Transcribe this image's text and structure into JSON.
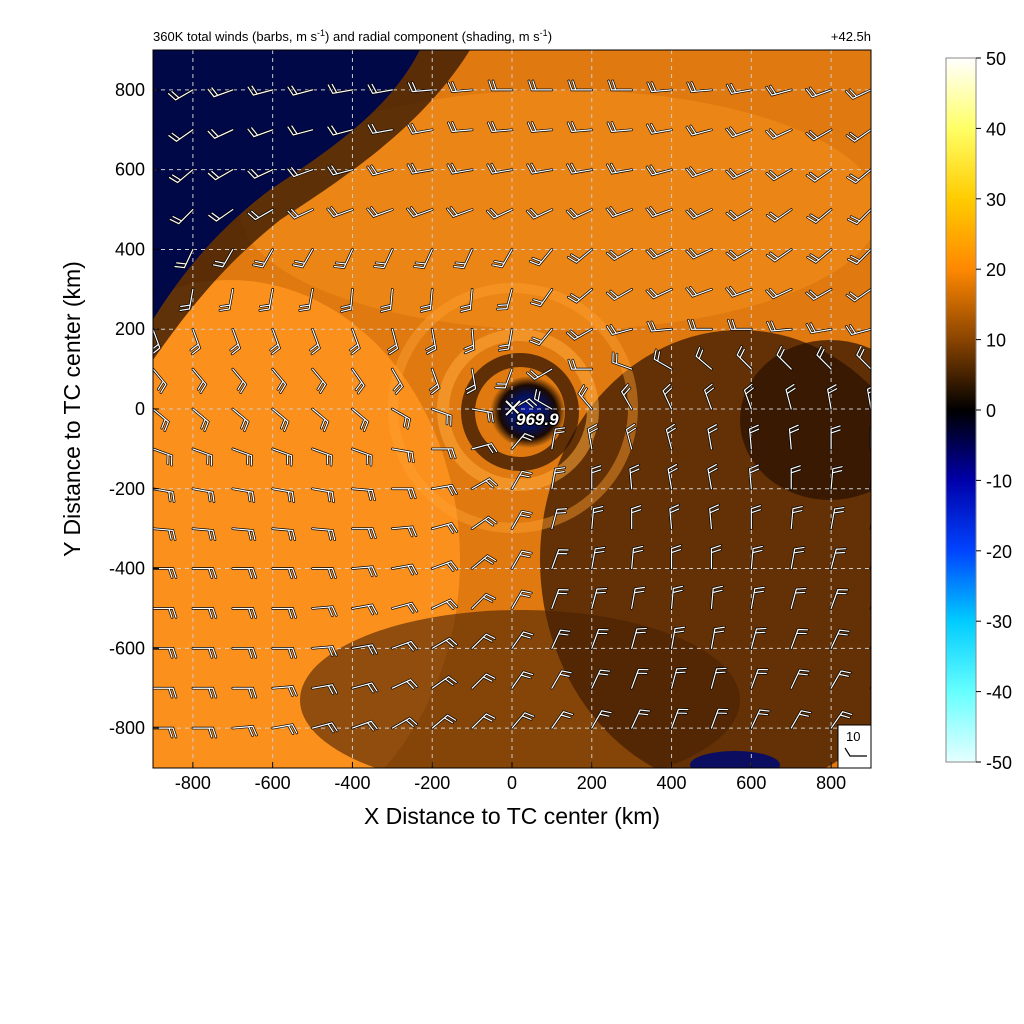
{
  "chart_data": {
    "type": "heatmap",
    "title": "360K total winds (barbs, m s⁻¹) and radial component (shading, m s⁻¹)",
    "title_parts": [
      "360K total winds (barbs, m s",
      "-1",
      ") and radial component (shading, m s",
      "-1",
      ")"
    ],
    "time_label": "+42.5h",
    "xlabel": "X Distance to TC center (km)",
    "ylabel": "Y Distance to TC center (km)",
    "xlim": [
      -900,
      900
    ],
    "ylim": [
      -900,
      900
    ],
    "xticks": [
      -800,
      -600,
      -400,
      -200,
      0,
      200,
      400,
      600,
      800
    ],
    "yticks": [
      -800,
      -600,
      -400,
      -200,
      0,
      200,
      400,
      600,
      800
    ],
    "grid": true,
    "center_marker": {
      "x": 0,
      "y": 0,
      "label": "969.9"
    },
    "barb_reference": {
      "label": "10"
    },
    "colorbar": {
      "ticks": [
        50,
        40,
        30,
        20,
        10,
        0,
        -10,
        -20,
        -30,
        -40,
        -50
      ],
      "range": [
        -50,
        50
      ],
      "stops": [
        {
          "value": -50,
          "color": "#e6ffff"
        },
        {
          "value": -40,
          "color": "#66ffff"
        },
        {
          "value": -30,
          "color": "#00ccff"
        },
        {
          "value": -20,
          "color": "#0044ff"
        },
        {
          "value": -10,
          "color": "#0000aa"
        },
        {
          "value": 0,
          "color": "#000000"
        },
        {
          "value": 10,
          "color": "#8a4400"
        },
        {
          "value": 20,
          "color": "#ff8800"
        },
        {
          "value": 30,
          "color": "#ffcc00"
        },
        {
          "value": 40,
          "color": "#ffff66"
        },
        {
          "value": 50,
          "color": "#ffffff"
        }
      ]
    },
    "colors": {
      "outflow_orange": "#ff8a18",
      "dark_orange": "#c85a00",
      "brown": "#3a1a02",
      "dark_blue": "#000a55",
      "grid": "#cccccc"
    },
    "barb_rows": [
      {
        "y": 800,
        "dirs": [
          230,
          240,
          250,
          255,
          255,
          260,
          260,
          265,
          265,
          270,
          270,
          270,
          270,
          265,
          265,
          260,
          255,
          250,
          245
        ]
      },
      {
        "y": 700,
        "dirs": [
          225,
          235,
          245,
          250,
          255,
          255,
          260,
          260,
          265,
          265,
          265,
          265,
          265,
          260,
          255,
          250,
          245,
          240,
          235
        ]
      },
      {
        "y": 600,
        "dirs": [
          220,
          230,
          240,
          245,
          250,
          255,
          255,
          260,
          260,
          260,
          260,
          260,
          260,
          255,
          250,
          245,
          240,
          235,
          230
        ]
      },
      {
        "y": 500,
        "dirs": [
          215,
          225,
          235,
          240,
          245,
          250,
          250,
          250,
          250,
          245,
          245,
          245,
          250,
          250,
          245,
          240,
          235,
          230,
          225
        ]
      },
      {
        "y": 400,
        "dirs": [
          200,
          205,
          210,
          210,
          210,
          205,
          205,
          205,
          205,
          210,
          220,
          230,
          240,
          245,
          245,
          240,
          235,
          230,
          225
        ]
      },
      {
        "y": 300,
        "dirs": [
          190,
          190,
          190,
          190,
          190,
          185,
          185,
          185,
          185,
          195,
          215,
          230,
          240,
          245,
          250,
          250,
          245,
          240,
          235
        ]
      },
      {
        "y": 200,
        "dirs": [
          160,
          160,
          160,
          160,
          160,
          160,
          165,
          170,
          175,
          190,
          220,
          240,
          255,
          265,
          270,
          270,
          265,
          260,
          255
        ]
      },
      {
        "y": 100,
        "dirs": [
          140,
          140,
          140,
          140,
          140,
          145,
          150,
          160,
          170,
          200,
          240,
          270,
          290,
          300,
          310,
          315,
          315,
          315,
          315
        ]
      },
      {
        "y": 0,
        "dirs": [
          130,
          130,
          130,
          130,
          130,
          130,
          120,
          110,
          100,
          60,
          300,
          320,
          330,
          335,
          340,
          340,
          345,
          350,
          350
        ]
      },
      {
        "y": -100,
        "dirs": [
          110,
          110,
          110,
          110,
          110,
          110,
          100,
          90,
          75,
          40,
          10,
          350,
          345,
          345,
          350,
          355,
          355,
          0,
          0
        ]
      },
      {
        "y": -200,
        "dirs": [
          100,
          100,
          100,
          100,
          100,
          95,
          90,
          80,
          60,
          30,
          10,
          0,
          355,
          350,
          350,
          355,
          0,
          5,
          5
        ]
      },
      {
        "y": -300,
        "dirs": [
          95,
          95,
          95,
          95,
          95,
          90,
          85,
          75,
          55,
          30,
          15,
          5,
          0,
          355,
          355,
          0,
          5,
          10,
          10
        ]
      },
      {
        "y": -400,
        "dirs": [
          90,
          90,
          90,
          90,
          90,
          85,
          80,
          70,
          50,
          30,
          20,
          10,
          5,
          0,
          0,
          5,
          10,
          15,
          15
        ]
      },
      {
        "y": -500,
        "dirs": [
          90,
          90,
          90,
          90,
          85,
          80,
          75,
          65,
          45,
          30,
          20,
          15,
          10,
          5,
          5,
          10,
          15,
          20,
          20
        ]
      },
      {
        "y": -600,
        "dirs": [
          90,
          90,
          90,
          90,
          85,
          80,
          70,
          60,
          45,
          35,
          25,
          20,
          15,
          10,
          10,
          15,
          20,
          25,
          25
        ]
      },
      {
        "y": -700,
        "dirs": [
          90,
          90,
          90,
          85,
          80,
          75,
          65,
          55,
          45,
          35,
          30,
          25,
          20,
          15,
          15,
          20,
          25,
          30,
          30
        ]
      },
      {
        "y": -800,
        "dirs": [
          90,
          90,
          85,
          80,
          75,
          70,
          60,
          50,
          45,
          40,
          35,
          30,
          25,
          20,
          20,
          25,
          30,
          35,
          35
        ]
      }
    ],
    "barb_x": [
      -900,
      -800,
      -700,
      -600,
      -500,
      -400,
      -300,
      -200,
      -100,
      0,
      100,
      200,
      300,
      400,
      500,
      600,
      700,
      800,
      900
    ]
  }
}
